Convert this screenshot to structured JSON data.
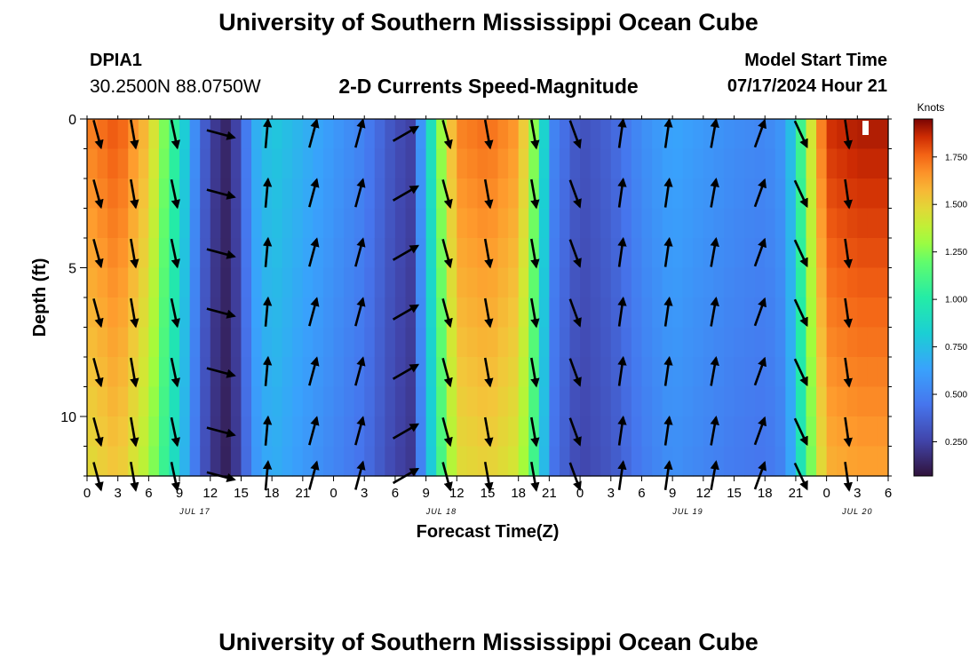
{
  "header": {
    "title": "University of Southern Mississippi Ocean Cube",
    "station_id": "DPIA1",
    "station_coords": "30.2500N  88.0750W",
    "chart_title": "2-D Currents Speed-Magnitude",
    "start_label": "Model Start Time",
    "start_value": "07/17/2024 Hour 21"
  },
  "footer": {
    "title": "University of Southern Mississippi Ocean Cube"
  },
  "chart_data": {
    "type": "heatmap",
    "title": "2-D Currents Speed-Magnitude",
    "xlabel": "Forecast Time(Z)",
    "ylabel": "Depth (ft)",
    "x_ticks": [
      "0",
      "3",
      "6",
      "9",
      "12",
      "15",
      "18",
      "21",
      "0",
      "3",
      "6",
      "9",
      "12",
      "15",
      "18",
      "21",
      "0",
      "3",
      "6",
      "9",
      "12",
      "15",
      "18",
      "21",
      "0",
      "3",
      "6"
    ],
    "x_date_labels": [
      {
        "label": "JUL 17",
        "at_tick": 3.5
      },
      {
        "label": "JUL 18",
        "at_tick": 11.5
      },
      {
        "label": "JUL 19",
        "at_tick": 19.5
      },
      {
        "label": "JUL 20",
        "at_tick": 25
      }
    ],
    "y_ticks": [
      0,
      5,
      10
    ],
    "ylim": [
      0,
      12
    ],
    "y_reversed": true,
    "colorbar": {
      "label": "Knots",
      "ticks": [
        "0.250",
        "0.500",
        "0.750",
        "1.000",
        "1.250",
        "1.500",
        "1.750"
      ],
      "range": [
        0.07,
        1.95
      ]
    },
    "speed_profile_by_hour": [
      [
        0,
        1.7
      ],
      [
        3,
        1.8
      ],
      [
        6,
        1.55
      ],
      [
        9,
        0.95
      ],
      [
        10.5,
        0.55
      ],
      [
        12,
        0.25
      ],
      [
        13.5,
        0.15
      ],
      [
        15,
        0.3
      ],
      [
        16,
        0.65
      ],
      [
        18,
        0.8
      ],
      [
        21,
        0.7
      ],
      [
        24,
        0.6
      ],
      [
        27,
        0.5
      ],
      [
        30,
        0.3
      ],
      [
        31.5,
        0.25
      ],
      [
        33,
        0.75
      ],
      [
        34.5,
        1.3
      ],
      [
        36,
        1.7
      ],
      [
        39,
        1.75
      ],
      [
        42,
        1.65
      ],
      [
        44,
        1.15
      ],
      [
        45,
        0.55
      ],
      [
        48,
        0.3
      ],
      [
        51,
        0.38
      ],
      [
        54,
        0.55
      ],
      [
        57,
        0.65
      ],
      [
        60,
        0.6
      ],
      [
        63,
        0.55
      ],
      [
        66,
        0.52
      ],
      [
        68,
        0.6
      ],
      [
        69,
        0.9
      ],
      [
        70,
        1.3
      ],
      [
        72,
        1.85
      ],
      [
        75,
        1.9
      ],
      [
        78,
        1.9
      ]
    ],
    "arrow_columns": [
      {
        "x_hour": 1,
        "angle": 165
      },
      {
        "x_hour": 4.5,
        "angle": 170
      },
      {
        "x_hour": 8.5,
        "angle": 168
      },
      {
        "x_hour": 13,
        "angle": 105
      },
      {
        "x_hour": 17.5,
        "angle": 5
      },
      {
        "x_hour": 22,
        "angle": 15
      },
      {
        "x_hour": 26.5,
        "angle": 15
      },
      {
        "x_hour": 31,
        "angle": 60
      },
      {
        "x_hour": 35,
        "angle": 165
      },
      {
        "x_hour": 39,
        "angle": 170
      },
      {
        "x_hour": 43.5,
        "angle": 170
      },
      {
        "x_hour": 47.5,
        "angle": 160
      },
      {
        "x_hour": 52,
        "angle": 8
      },
      {
        "x_hour": 56.5,
        "angle": 8
      },
      {
        "x_hour": 61,
        "angle": 10
      },
      {
        "x_hour": 65.5,
        "angle": 20
      },
      {
        "x_hour": 69.5,
        "angle": 155
      },
      {
        "x_hour": 74,
        "angle": 172
      }
    ],
    "arrow_depths_ft": [
      0.5,
      2.5,
      4.5,
      6.5,
      8.5,
      10.5,
      12
    ]
  }
}
